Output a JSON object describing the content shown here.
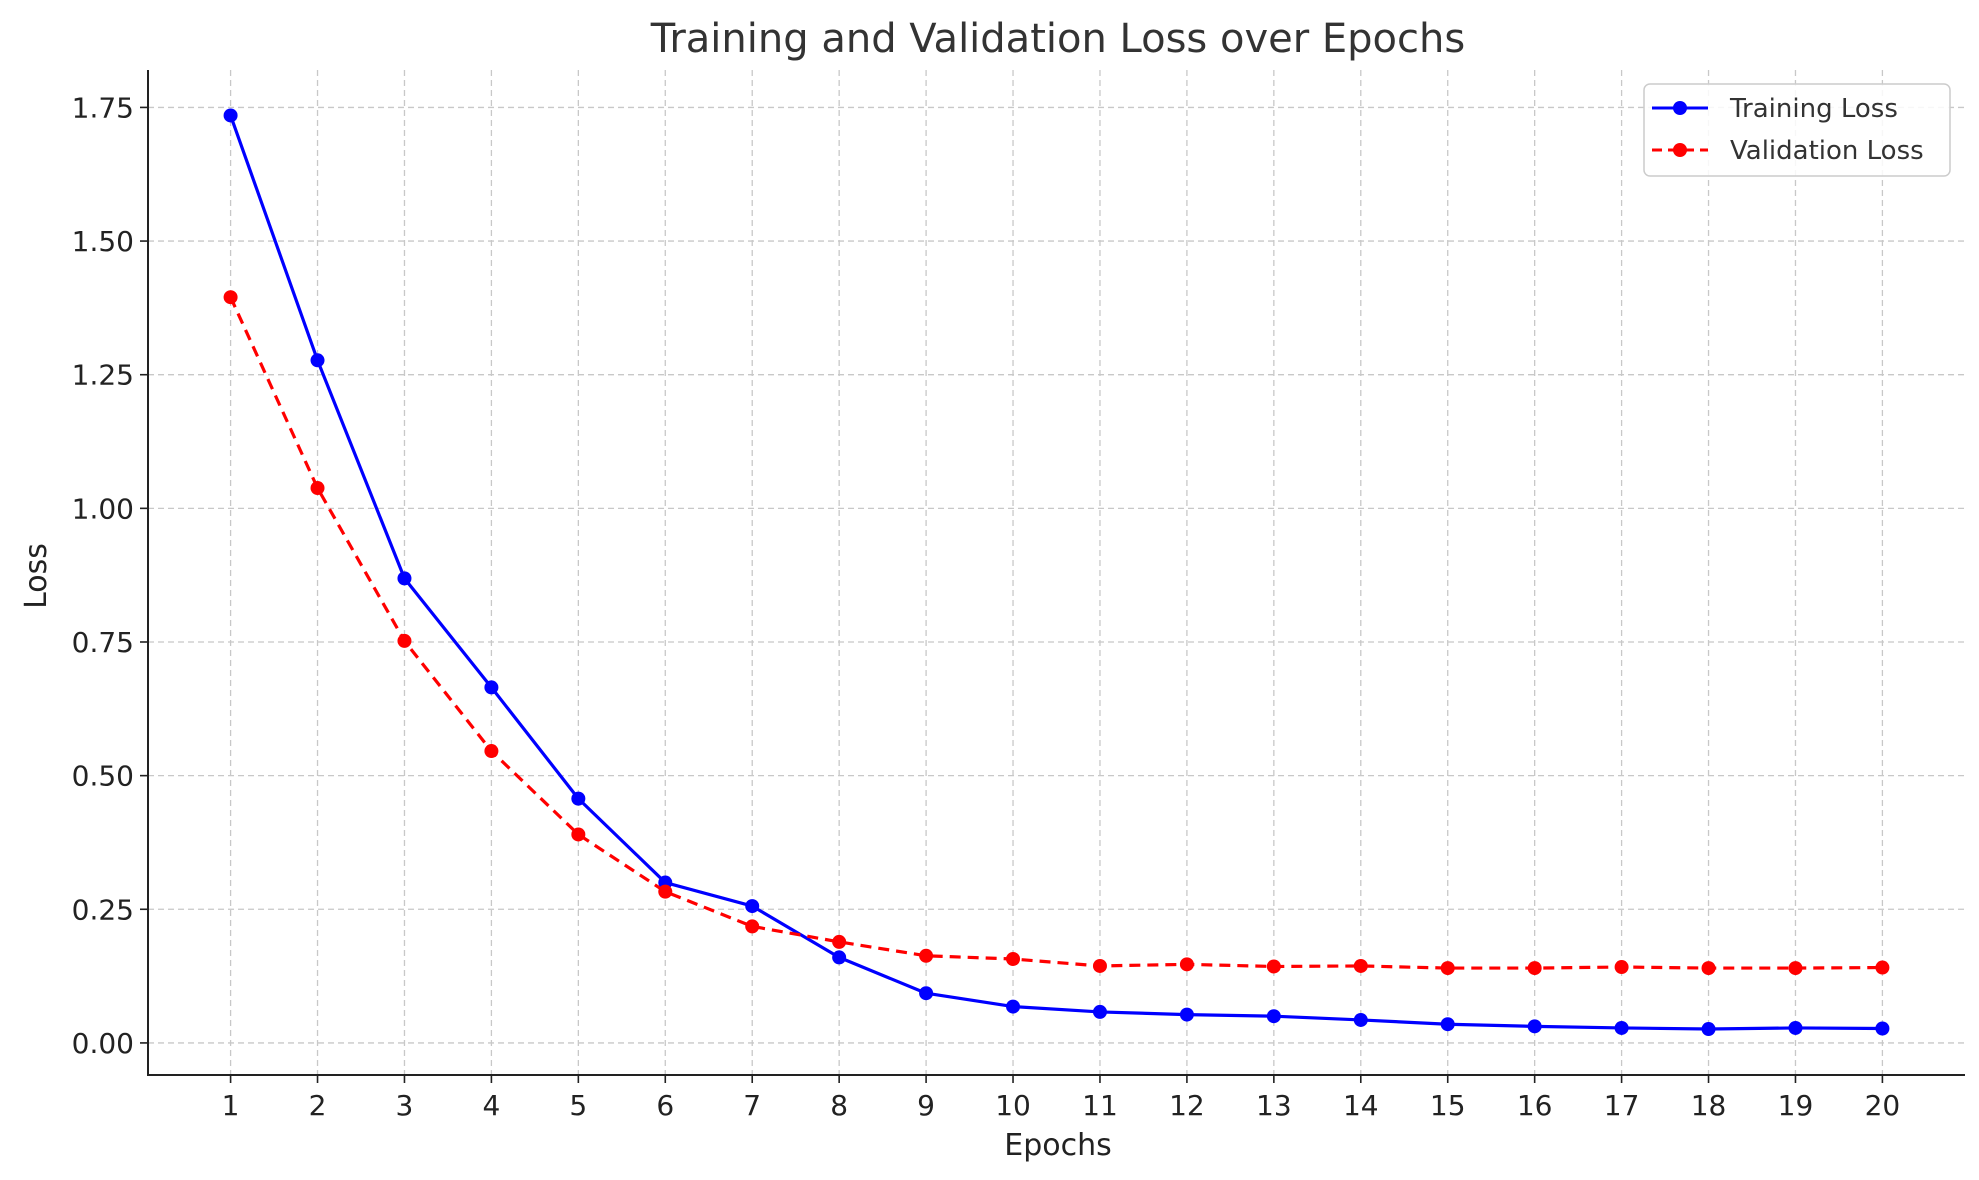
{
  "chart_data": {
    "type": "line",
    "title": "Training and Validation Loss over Epochs",
    "xlabel": "Epochs",
    "ylabel": "Loss",
    "x": [
      1,
      2,
      3,
      4,
      5,
      6,
      7,
      8,
      9,
      10,
      11,
      12,
      13,
      14,
      15,
      16,
      17,
      18,
      19,
      20
    ],
    "xlim": [
      0.05,
      20.95
    ],
    "ylim": [
      -0.06,
      1.82
    ],
    "yticks": [
      0.0,
      0.25,
      0.5,
      0.75,
      1.0,
      1.25,
      1.5,
      1.75
    ],
    "ytick_labels": [
      "0.00",
      "0.25",
      "0.50",
      "0.75",
      "1.00",
      "1.25",
      "1.50",
      "1.75"
    ],
    "xtick_labels": [
      "1",
      "2",
      "3",
      "4",
      "5",
      "6",
      "7",
      "8",
      "9",
      "10",
      "11",
      "12",
      "13",
      "14",
      "15",
      "16",
      "17",
      "18",
      "19",
      "20"
    ],
    "grid": true,
    "legend_position": "top-right",
    "series": [
      {
        "name": "Training Loss",
        "color": "#0000ff",
        "line_style": "solid",
        "marker": "circle",
        "values": [
          1.735,
          1.277,
          0.869,
          0.665,
          0.457,
          0.3,
          0.256,
          0.16,
          0.093,
          0.068,
          0.058,
          0.053,
          0.05,
          0.043,
          0.035,
          0.031,
          0.028,
          0.026,
          0.028,
          0.027
        ]
      },
      {
        "name": "Validation Loss",
        "color": "#ff0000",
        "line_style": "dashed",
        "marker": "circle",
        "values": [
          1.395,
          1.038,
          0.752,
          0.546,
          0.39,
          0.283,
          0.218,
          0.189,
          0.163,
          0.157,
          0.144,
          0.147,
          0.143,
          0.144,
          0.14,
          0.14,
          0.142,
          0.14,
          0.14,
          0.141
        ]
      }
    ]
  }
}
